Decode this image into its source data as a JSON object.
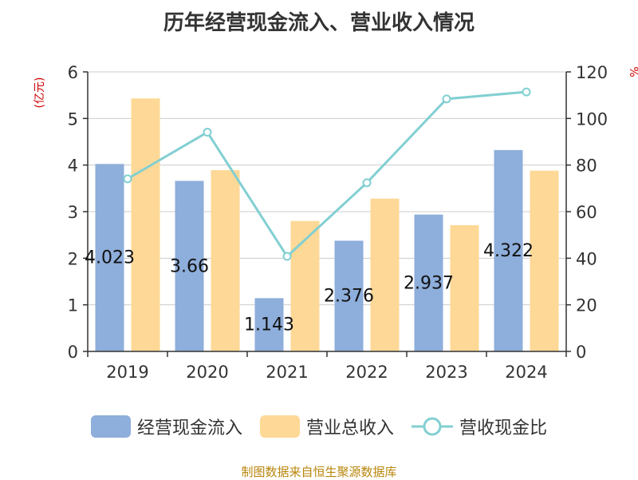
{
  "chart_data": {
    "type": "bar",
    "title": "历年经营现金流入、营业收入情况",
    "categories": [
      "2019",
      "2020",
      "2021",
      "2022",
      "2023",
      "2024"
    ],
    "series": [
      {
        "name": "经营现金流入",
        "kind": "bar",
        "axis": "left",
        "color": "#8eaedb",
        "values": [
          4.023,
          3.66,
          1.143,
          2.376,
          2.937,
          4.322
        ]
      },
      {
        "name": "营业总收入",
        "kind": "bar",
        "axis": "left",
        "color": "#fed896",
        "values": [
          5.43,
          3.89,
          2.8,
          3.28,
          2.71,
          3.88
        ]
      },
      {
        "name": "营收现金比",
        "kind": "line",
        "axis": "right",
        "color": "#82cfd2",
        "values": [
          74.1,
          94.1,
          40.8,
          72.4,
          108.4,
          111.4
        ]
      }
    ],
    "data_labels": [
      "4.023",
      "3.66",
      "1.143",
      "2.376",
      "2.937",
      "4.322"
    ],
    "ylabel_left": "(亿元)",
    "ylabel_right": "%",
    "ylim_left": [
      0,
      6
    ],
    "ylim_right": [
      0,
      120
    ],
    "yticks_left": [
      "0",
      "1",
      "2",
      "3",
      "4",
      "5",
      "6"
    ],
    "yticks_right": [
      "0",
      "20",
      "40",
      "60",
      "80",
      "100",
      "120"
    ],
    "grid": true,
    "legend_position": "bottom"
  },
  "source": "制图数据来自恒生聚源数据库"
}
